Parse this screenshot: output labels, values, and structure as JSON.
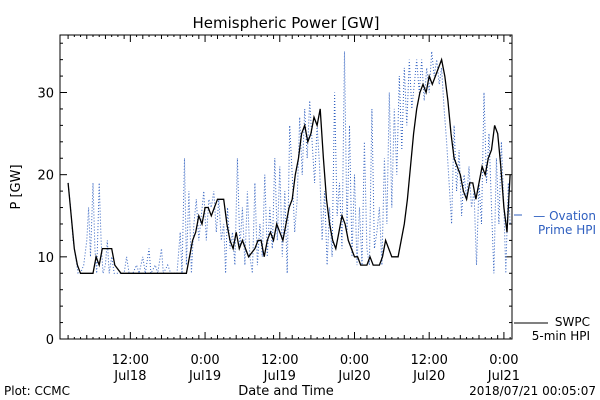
{
  "chart_data": {
    "type": "line",
    "title": "Hemispheric Power [GW]",
    "ylabel": "P [GW]",
    "xlabel": "Date and Time",
    "xlim_hours": [
      0,
      60
    ],
    "ylim": [
      0,
      37
    ],
    "yticks": [
      0,
      10,
      20,
      30
    ],
    "xticks": [
      {
        "t": 10,
        "time": "12:00",
        "date": "Jul18"
      },
      {
        "t": 22,
        "time": "0:00",
        "date": "Jul19"
      },
      {
        "t": 34,
        "time": "12:00",
        "date": "Jul19"
      },
      {
        "t": 46,
        "time": "0:00",
        "date": "Jul20"
      },
      {
        "t": 58,
        "time": "12:00",
        "date": "Jul20"
      },
      {
        "t": 70,
        "time": "0:00",
        "date": "Jul21"
      }
    ],
    "series": [
      {
        "name": "SWPC 5-min HPI",
        "color": "#000000",
        "style": "solid",
        "points": [
          [
            0.0,
            19
          ],
          [
            0.5,
            15
          ],
          [
            1.0,
            11
          ],
          [
            1.5,
            9
          ],
          [
            2.0,
            8
          ],
          [
            4.0,
            8
          ],
          [
            4.5,
            10
          ],
          [
            5.0,
            9
          ],
          [
            5.5,
            11
          ],
          [
            7.0,
            11
          ],
          [
            7.5,
            9
          ],
          [
            8.5,
            8
          ],
          [
            19.0,
            8
          ],
          [
            19.5,
            10
          ],
          [
            20.0,
            12
          ],
          [
            20.5,
            13
          ],
          [
            21.0,
            15
          ],
          [
            21.5,
            14
          ],
          [
            22.0,
            16
          ],
          [
            22.5,
            16
          ],
          [
            23.0,
            15
          ],
          [
            23.5,
            16
          ],
          [
            24.0,
            17
          ],
          [
            25.0,
            17
          ],
          [
            25.5,
            14
          ],
          [
            26.0,
            12
          ],
          [
            26.5,
            11
          ],
          [
            27.0,
            13
          ],
          [
            27.5,
            11
          ],
          [
            28.0,
            12
          ],
          [
            28.5,
            11
          ],
          [
            29.0,
            10
          ],
          [
            30.0,
            11
          ],
          [
            30.5,
            12
          ],
          [
            31.0,
            12
          ],
          [
            31.5,
            10
          ],
          [
            32.0,
            12
          ],
          [
            32.5,
            13
          ],
          [
            33.0,
            12
          ],
          [
            33.5,
            14
          ],
          [
            34.0,
            13
          ],
          [
            34.5,
            12
          ],
          [
            35.0,
            14
          ],
          [
            35.5,
            16
          ],
          [
            36.0,
            17
          ],
          [
            36.5,
            20
          ],
          [
            37.0,
            22
          ],
          [
            37.5,
            25
          ],
          [
            38.0,
            26
          ],
          [
            38.5,
            24
          ],
          [
            39.0,
            25
          ],
          [
            39.5,
            27
          ],
          [
            40.0,
            26
          ],
          [
            40.5,
            28
          ],
          [
            41.0,
            22
          ],
          [
            41.5,
            17
          ],
          [
            42.0,
            14
          ],
          [
            42.5,
            12
          ],
          [
            43.0,
            11
          ],
          [
            43.5,
            13
          ],
          [
            44.0,
            15
          ],
          [
            44.5,
            14
          ],
          [
            45.0,
            12
          ],
          [
            45.5,
            11
          ],
          [
            46.0,
            10
          ],
          [
            46.5,
            10
          ],
          [
            47.0,
            9
          ],
          [
            48.0,
            9
          ],
          [
            48.5,
            10
          ],
          [
            49.0,
            9
          ],
          [
            50.0,
            9
          ],
          [
            50.5,
            10
          ],
          [
            51.0,
            12
          ],
          [
            51.5,
            11
          ],
          [
            52.0,
            10
          ],
          [
            53.0,
            10
          ],
          [
            53.5,
            12
          ],
          [
            54.0,
            14
          ],
          [
            54.5,
            17
          ],
          [
            55.0,
            21
          ],
          [
            55.5,
            25
          ],
          [
            56.0,
            28
          ],
          [
            56.5,
            30
          ],
          [
            57.0,
            31
          ],
          [
            57.5,
            30
          ],
          [
            58.0,
            32
          ],
          [
            58.5,
            31
          ],
          [
            59.0,
            32
          ],
          [
            59.5,
            33
          ],
          [
            60.0,
            34
          ],
          [
            60.5,
            32
          ],
          [
            61.0,
            29
          ],
          [
            61.5,
            25
          ],
          [
            62.0,
            22
          ],
          [
            62.5,
            21
          ],
          [
            63.0,
            20
          ],
          [
            63.5,
            18
          ],
          [
            64.0,
            17
          ],
          [
            64.5,
            19
          ],
          [
            65.0,
            19
          ],
          [
            65.5,
            17
          ],
          [
            66.0,
            19
          ],
          [
            66.5,
            21
          ],
          [
            67.0,
            20
          ],
          [
            67.5,
            22
          ],
          [
            68.0,
            23
          ],
          [
            68.5,
            26
          ],
          [
            69.0,
            25
          ],
          [
            69.5,
            21
          ],
          [
            70.0,
            16
          ],
          [
            70.5,
            13
          ],
          [
            71.0,
            20
          ]
        ]
      },
      {
        "name": "Ovation Prime HPI",
        "color": "#3060c0",
        "style": "dotted",
        "points": [
          [
            0.0,
            19
          ],
          [
            0.4,
            16
          ],
          [
            0.8,
            12
          ],
          [
            1.2,
            10
          ],
          [
            1.6,
            8
          ],
          [
            2.0,
            8
          ],
          [
            2.5,
            9
          ],
          [
            3.0,
            12
          ],
          [
            3.3,
            16
          ],
          [
            3.6,
            10
          ],
          [
            4.0,
            19
          ],
          [
            4.3,
            11
          ],
          [
            4.6,
            8
          ],
          [
            5.0,
            19
          ],
          [
            5.3,
            12
          ],
          [
            5.6,
            8
          ],
          [
            6.0,
            9
          ],
          [
            6.3,
            12
          ],
          [
            6.6,
            8
          ],
          [
            7.0,
            10
          ],
          [
            7.4,
            8
          ],
          [
            8.0,
            8
          ],
          [
            9.0,
            8
          ],
          [
            9.4,
            10
          ],
          [
            9.8,
            8
          ],
          [
            10.4,
            8
          ],
          [
            11.0,
            9
          ],
          [
            11.4,
            8
          ],
          [
            12.0,
            10
          ],
          [
            12.4,
            8
          ],
          [
            13.0,
            11
          ],
          [
            13.3,
            8
          ],
          [
            14.0,
            9
          ],
          [
            14.4,
            8
          ],
          [
            15.0,
            11
          ],
          [
            15.3,
            8
          ],
          [
            16.0,
            9
          ],
          [
            16.5,
            8
          ],
          [
            17.5,
            8
          ],
          [
            18.0,
            13
          ],
          [
            18.3,
            8
          ],
          [
            18.7,
            22
          ],
          [
            19.0,
            9
          ],
          [
            19.4,
            18
          ],
          [
            19.8,
            8
          ],
          [
            20.2,
            14
          ],
          [
            20.6,
            17
          ],
          [
            21.0,
            12
          ],
          [
            21.4,
            15
          ],
          [
            21.8,
            18
          ],
          [
            22.2,
            12
          ],
          [
            22.6,
            17
          ],
          [
            23.0,
            16
          ],
          [
            23.4,
            18
          ],
          [
            23.8,
            13
          ],
          [
            24.2,
            17
          ],
          [
            24.6,
            12
          ],
          [
            25.0,
            14
          ],
          [
            25.3,
            8
          ],
          [
            25.6,
            16
          ],
          [
            26.0,
            11
          ],
          [
            26.4,
            13
          ],
          [
            26.8,
            9
          ],
          [
            27.2,
            22
          ],
          [
            27.6,
            11
          ],
          [
            28.0,
            16
          ],
          [
            28.4,
            9
          ],
          [
            28.8,
            18
          ],
          [
            29.2,
            10
          ],
          [
            29.6,
            8
          ],
          [
            30.0,
            19
          ],
          [
            30.4,
            9
          ],
          [
            30.8,
            14
          ],
          [
            31.2,
            10
          ],
          [
            31.6,
            20
          ],
          [
            32.0,
            10
          ],
          [
            32.4,
            16
          ],
          [
            32.8,
            11
          ],
          [
            33.2,
            22
          ],
          [
            33.6,
            12
          ],
          [
            34.0,
            21
          ],
          [
            34.4,
            10
          ],
          [
            34.8,
            18
          ],
          [
            35.2,
            8
          ],
          [
            35.6,
            26
          ],
          [
            36.0,
            20
          ],
          [
            36.4,
            13
          ],
          [
            36.8,
            17
          ],
          [
            37.2,
            27
          ],
          [
            37.6,
            20
          ],
          [
            38.0,
            28
          ],
          [
            38.4,
            22
          ],
          [
            38.8,
            29
          ],
          [
            39.2,
            24
          ],
          [
            39.6,
            19
          ],
          [
            40.0,
            26
          ],
          [
            40.4,
            21
          ],
          [
            40.8,
            12
          ],
          [
            41.2,
            18
          ],
          [
            41.6,
            9
          ],
          [
            42.0,
            16
          ],
          [
            42.4,
            10
          ],
          [
            42.8,
            30
          ],
          [
            43.2,
            15
          ],
          [
            43.6,
            19
          ],
          [
            44.0,
            11
          ],
          [
            44.4,
            35
          ],
          [
            44.8,
            13
          ],
          [
            45.2,
            26
          ],
          [
            45.6,
            10
          ],
          [
            46.0,
            20
          ],
          [
            46.4,
            9
          ],
          [
            46.8,
            16
          ],
          [
            47.2,
            9
          ],
          [
            47.6,
            24
          ],
          [
            48.0,
            11
          ],
          [
            48.4,
            9
          ],
          [
            48.8,
            28
          ],
          [
            49.2,
            11
          ],
          [
            49.6,
            13
          ],
          [
            50.0,
            16
          ],
          [
            50.4,
            9
          ],
          [
            50.8,
            22
          ],
          [
            51.2,
            14
          ],
          [
            51.6,
            30
          ],
          [
            52.0,
            16
          ],
          [
            52.4,
            28
          ],
          [
            52.8,
            20
          ],
          [
            53.2,
            32
          ],
          [
            53.6,
            23
          ],
          [
            54.0,
            33
          ],
          [
            54.4,
            26
          ],
          [
            54.8,
            34
          ],
          [
            55.2,
            28
          ],
          [
            55.6,
            31
          ],
          [
            56.0,
            34
          ],
          [
            56.4,
            30
          ],
          [
            56.8,
            34
          ],
          [
            57.2,
            29
          ],
          [
            57.6,
            33
          ],
          [
            58.0,
            30
          ],
          [
            58.4,
            35
          ],
          [
            58.8,
            32
          ],
          [
            59.2,
            34
          ],
          [
            59.6,
            31
          ],
          [
            60.0,
            33
          ],
          [
            60.4,
            28
          ],
          [
            60.8,
            24
          ],
          [
            61.2,
            19
          ],
          [
            61.6,
            14
          ],
          [
            62.0,
            26
          ],
          [
            62.4,
            18
          ],
          [
            62.8,
            23
          ],
          [
            63.2,
            15
          ],
          [
            63.6,
            20
          ],
          [
            64.0,
            17
          ],
          [
            64.4,
            21
          ],
          [
            64.8,
            16
          ],
          [
            65.2,
            18
          ],
          [
            65.6,
            9
          ],
          [
            66.0,
            19
          ],
          [
            66.4,
            14
          ],
          [
            66.8,
            30
          ],
          [
            67.2,
            19
          ],
          [
            67.6,
            25
          ],
          [
            68.0,
            16
          ],
          [
            68.4,
            8
          ],
          [
            68.8,
            22
          ],
          [
            69.2,
            14
          ],
          [
            69.6,
            24
          ],
          [
            70.0,
            16
          ],
          [
            70.3,
            8
          ],
          [
            70.7,
            19
          ],
          [
            71.0,
            14
          ]
        ]
      }
    ],
    "legend": [
      {
        "lines": [
          "— Ovation",
          "Prime HPI"
        ],
        "color": "#3060c0"
      },
      {
        "lines": [
          "SWPC",
          "5-min HPI"
        ],
        "color": "#000000"
      }
    ],
    "footer_left": "Plot: CCMC",
    "footer_right": "2018/07/21 00:05:07"
  }
}
